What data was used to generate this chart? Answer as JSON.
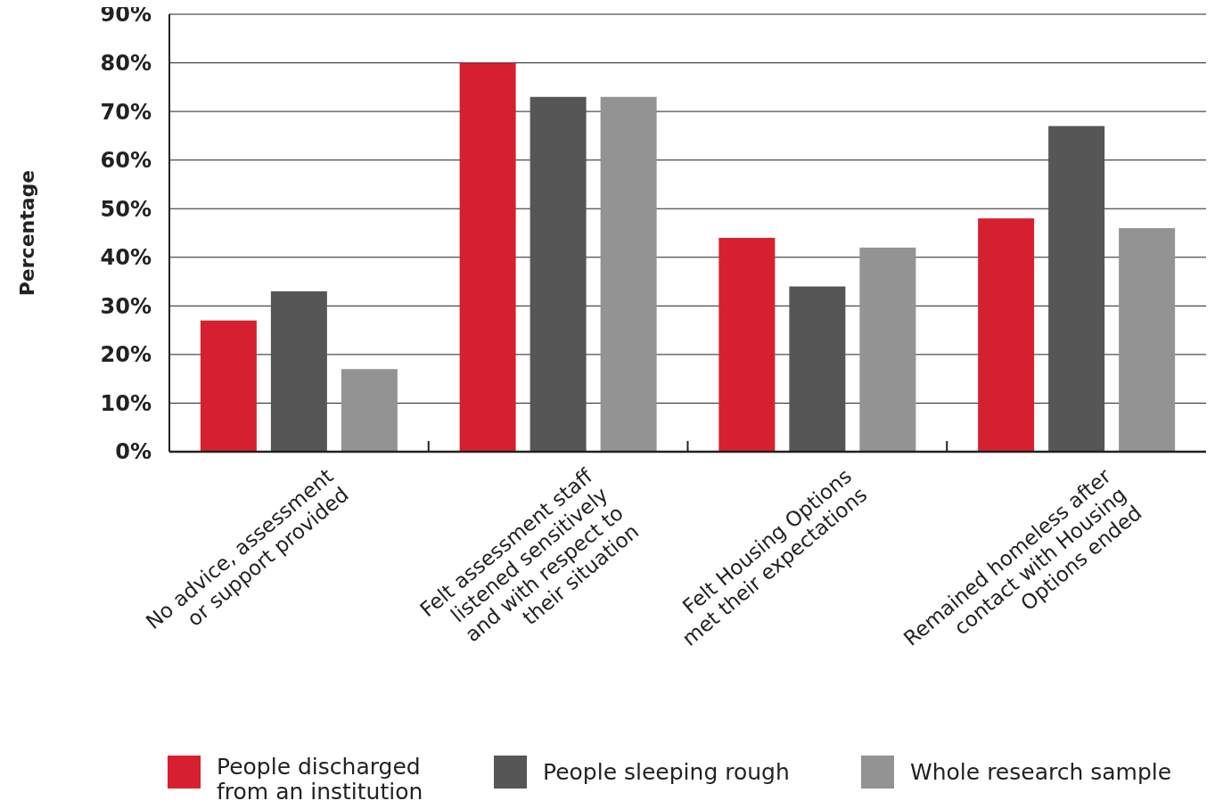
{
  "chart_data": {
    "type": "bar",
    "ylabel": "Percentage",
    "categories": [
      "No advice, assessment\nor support provided",
      "Felt assessment staff\nlistened sensitively\nand with respect to\ntheir situation",
      "Felt Housing Options\nmet their expectations",
      "Remained homeless after\ncontact with Housing\nOptions ended"
    ],
    "series": [
      {
        "name": "People discharged\nfrom an institution",
        "color": "#d7202f",
        "values": [
          27,
          80,
          44,
          48
        ]
      },
      {
        "name": "People sleeping rough",
        "color": "#555655",
        "values": [
          33,
          73,
          34,
          67
        ]
      },
      {
        "name": "Whole research sample",
        "color": "#939393",
        "values": [
          17,
          73,
          42,
          46
        ]
      }
    ],
    "ylim": [
      0,
      90
    ],
    "yticks": [
      {
        "value": 0,
        "label": "0%"
      },
      {
        "value": 10,
        "label": "10%"
      },
      {
        "value": 20,
        "label": "20%"
      },
      {
        "value": 30,
        "label": "30%"
      },
      {
        "value": 40,
        "label": "40%"
      },
      {
        "value": 50,
        "label": "50%"
      },
      {
        "value": 60,
        "label": "60%"
      },
      {
        "value": 70,
        "label": "70%"
      },
      {
        "value": 80,
        "label": "80%"
      },
      {
        "value": 90,
        "label": "90%"
      }
    ],
    "grid": "y",
    "legend": "bottom"
  }
}
